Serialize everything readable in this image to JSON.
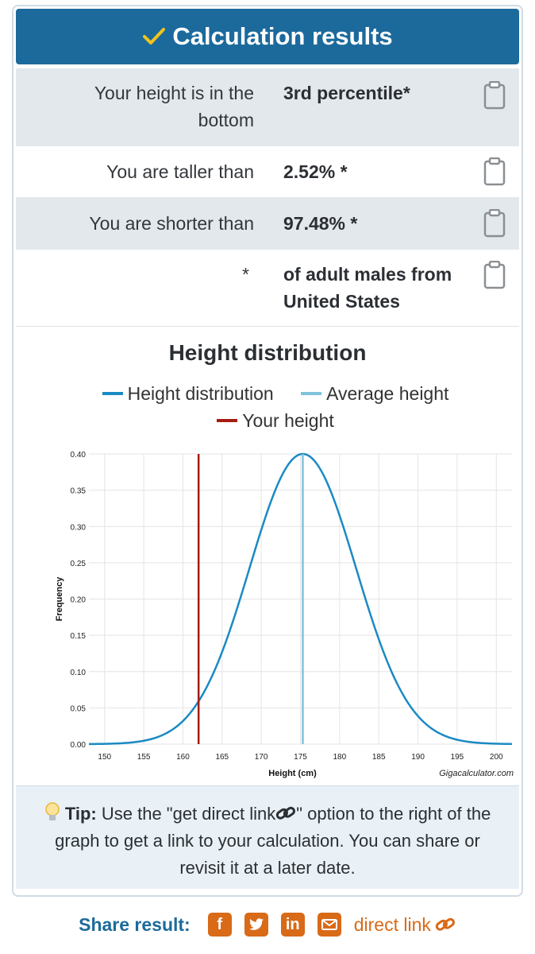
{
  "header": {
    "title": "Calculation results"
  },
  "results": [
    {
      "label": "Your height is in the bottom",
      "value": "3rd percentile*"
    },
    {
      "label": "You are taller than",
      "value": "2.52% *"
    },
    {
      "label": "You are shorter than",
      "value": "97.48% *"
    },
    {
      "label": "*",
      "value": "of adult males from United States"
    }
  ],
  "colors": {
    "header": "#1c6a9c",
    "curve": "#1a8ac4",
    "average": "#7fc3dd",
    "yours": "#a41c12",
    "accent": "#d86a18"
  },
  "chart_data": {
    "type": "line",
    "title": "Height distribution",
    "xlabel": "Height (cm)",
    "ylabel": "Frequency",
    "xlim": [
      148,
      202
    ],
    "ylim": [
      0,
      0.4
    ],
    "x_ticks": [
      150,
      155,
      160,
      165,
      170,
      175,
      180,
      185,
      190,
      195,
      200
    ],
    "y_ticks": [
      "0.00",
      "0.05",
      "0.10",
      "0.15",
      "0.20",
      "0.25",
      "0.30",
      "0.35",
      "0.40"
    ],
    "grid": true,
    "legend_position": "top",
    "credit": "Gigacalculator.com",
    "series": [
      {
        "name": "Height distribution",
        "mean": 175.3,
        "sd": 6.8,
        "peak": 0.4,
        "x_range": [
          148,
          202
        ]
      },
      {
        "name": "Average height",
        "x": 175.3
      },
      {
        "name": "Your height",
        "x": 162
      }
    ]
  },
  "tip": {
    "label": "Tip:",
    "text_before": "Use the \"get direct link",
    "text_after": "\" option to the right of the graph to get a link to your calculation. You can share or revisit it at a later date."
  },
  "share": {
    "label": "Share result:",
    "icons": [
      "facebook-icon",
      "twitter-icon",
      "linkedin-icon",
      "email-icon"
    ],
    "direct_link": "direct link"
  }
}
